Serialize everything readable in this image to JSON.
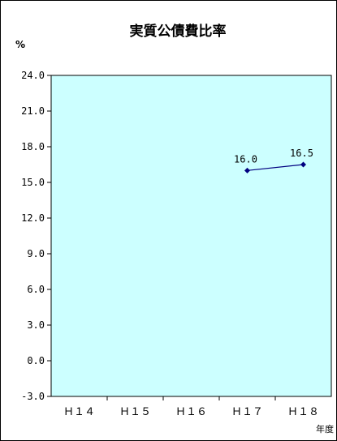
{
  "chart_data": {
    "type": "line",
    "title": "実質公債費比率",
    "ylabel": "%",
    "xlabel": "年度",
    "categories": [
      "Ｈ１４",
      "Ｈ１５",
      "Ｈ１６",
      "Ｈ１７",
      "Ｈ１８"
    ],
    "series": [
      {
        "values": [
          null,
          null,
          null,
          16.0,
          16.5
        ],
        "data_labels": [
          null,
          null,
          null,
          "16.0",
          "16.5"
        ]
      }
    ],
    "ylim": [
      -3.0,
      24.0
    ],
    "yticks": [
      "24.0",
      "21.0",
      "18.0",
      "15.0",
      "12.0",
      "9.0",
      "6.0",
      "3.0",
      "0.0",
      "-3.0"
    ],
    "grid": false,
    "legend": "none"
  },
  "colors": {
    "plot_background": "#ccffff",
    "line": "#000080",
    "marker": "#000080",
    "axis": "#000000"
  }
}
